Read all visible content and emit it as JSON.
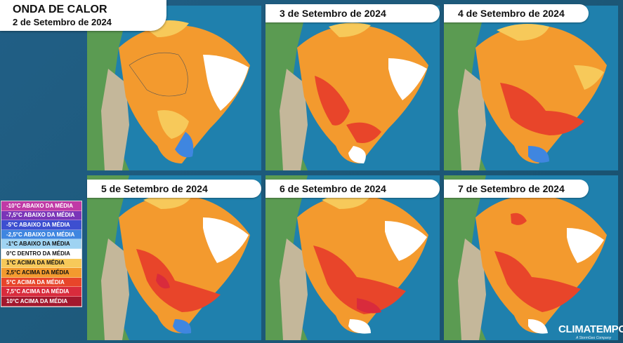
{
  "header": {
    "title": "ONDA DE CALOR",
    "date": "2 de Setembro de 2024"
  },
  "maps": [
    {
      "date": "2 de Setembro de 2024",
      "dominant_anomaly": "2,5°C ACIMA DA MÉDIA"
    },
    {
      "date": "3 de Setembro de 2024",
      "dominant_anomaly": "2,5°C ACIMA DA MÉDIA"
    },
    {
      "date": "4 de Setembro de 2024",
      "dominant_anomaly": "2,5°C ACIMA DA MÉDIA"
    },
    {
      "date": "5 de Setembro de 2024",
      "dominant_anomaly": "5°C ACIMA DA MÉDIA"
    },
    {
      "date": "6 de Setembro de 2024",
      "dominant_anomaly": "5°C ACIMA DA MÉDIA"
    },
    {
      "date": "7 de Setembro de 2024",
      "dominant_anomaly": "5°C ACIMA DA MÉDIA"
    }
  ],
  "legend": [
    {
      "label": "-10°C ABAIXO DA MÉDIA",
      "color": "#c03aa6"
    },
    {
      "label": "-7,5°C ABAIXO DA MÉDIA",
      "color": "#7a35b8"
    },
    {
      "label": "-5°C ABAIXO DA MÉDIA",
      "color": "#3d4fd0"
    },
    {
      "label": "-2,5°C ABAIXO DA MÉDIA",
      "color": "#3f86e0"
    },
    {
      "label": "-1°C ABAIXO DA MÉDIA",
      "color": "#9fd3f2"
    },
    {
      "label": "0°C DENTRO DA MÉDIA",
      "color": "#ffffff"
    },
    {
      "label": "1°C ACIMA DA MÉDIA",
      "color": "#f7c95a"
    },
    {
      "label": "2,5°C ACIMA DA MÉDIA",
      "color": "#f39a2e"
    },
    {
      "label": "5°C ACIMA DA MÉDIA",
      "color": "#e8452a"
    },
    {
      "label": "7,5°C ACIMA DA MÉDIA",
      "color": "#d92b3c"
    },
    {
      "label": "10°C ACIMA DA MÉDIA",
      "color": "#a3182e"
    }
  ],
  "brand": {
    "name": "CLIMATEMPO",
    "tagline": "A StormGeo Company"
  }
}
